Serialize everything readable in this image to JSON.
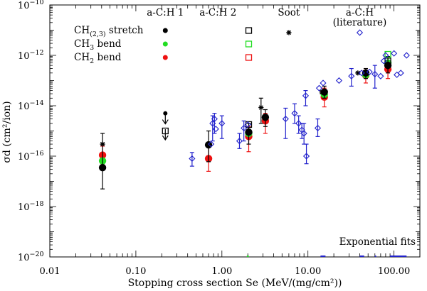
{
  "chart_data": {
    "type": "scatter",
    "xlabel": "Stopping cross section Se (MeV/(mg/cm²))",
    "ylabel": "σd (cm²/ion)",
    "x_scale": "log",
    "y_scale": "log",
    "xlim": [
      0.01,
      200
    ],
    "ylim": [
      1e-20,
      1e-10
    ],
    "x_ticks": [
      {
        "value": 0.01,
        "label": "0.01"
      },
      {
        "value": 0.1,
        "label": "0.10"
      },
      {
        "value": 1,
        "label": "1.00"
      },
      {
        "value": 10,
        "label": "10.00"
      },
      {
        "value": 100,
        "label": "100.00"
      }
    ],
    "y_ticks": [
      {
        "value": 1e-20,
        "mant": "10",
        "exp": "−20"
      },
      {
        "value": 1e-18,
        "mant": "10",
        "exp": "−18"
      },
      {
        "value": 1e-16,
        "mant": "10",
        "exp": "−16"
      },
      {
        "value": 1e-14,
        "mant": "10",
        "exp": "−14"
      },
      {
        "value": 1e-12,
        "mant": "10",
        "exp": "−12"
      },
      {
        "value": 1e-10,
        "mant": "10",
        "exp": "−10"
      }
    ],
    "column_headers": [
      {
        "text": "a-C:H 1",
        "x": 0.22
      },
      {
        "text": "a-C:H 2",
        "x": 0.9
      },
      {
        "text": "Soot",
        "x": 6.0
      },
      {
        "text": "a-C:H",
        "x": 40.0
      },
      {
        "text": "(literature)",
        "x": 40.0
      }
    ],
    "legend_rows": [
      {
        "base": "CH",
        "sub": "(2,3)",
        "rest": " stretch",
        "color": "#000000"
      },
      {
        "base": "CH",
        "sub": "3",
        "rest": " bend",
        "color": "#22dd22"
      },
      {
        "base": "CH",
        "sub": "2",
        "rest": " bend",
        "color": "#ee1111"
      }
    ],
    "note": "Exponential fits",
    "colors": {
      "black": "#000000",
      "green": "#22dd22",
      "red": "#ee1111",
      "blue": "#2222cc"
    },
    "series": [
      {
        "kind": "circle",
        "color": "#ee1111",
        "points": [
          {
            "x": 0.041,
            "y": 1.1e-16,
            "lo": 5e-17,
            "hi": 2.5e-16
          },
          {
            "x": 0.7,
            "y": 8e-17,
            "lo": 2.5e-17,
            "hi": 3e-16
          },
          {
            "x": 2.05,
            "y": 6e-16,
            "lo": 1.5e-16,
            "hi": 1.5e-15
          },
          {
            "x": 3.2,
            "y": 2.5e-15,
            "lo": 8e-16,
            "hi": 5e-15
          },
          {
            "x": 15.5,
            "y": 2.2e-14,
            "lo": 9e-15,
            "hi": 5e-14
          },
          {
            "x": 47,
            "y": 1.6e-13,
            "lo": 8e-14,
            "hi": 3e-13
          },
          {
            "x": 85,
            "y": 2.8e-13,
            "lo": 1.2e-13,
            "hi": 6e-13
          }
        ]
      },
      {
        "kind": "circle",
        "color": "#22dd22",
        "points": [
          {
            "x": 0.041,
            "y": 6.5e-17
          },
          {
            "x": 2.05,
            "y": 8e-16
          },
          {
            "x": 15.5,
            "y": 2.8e-14
          },
          {
            "x": 47,
            "y": 1.7e-13
          },
          {
            "x": 85,
            "y": 5e-13
          }
        ]
      },
      {
        "kind": "circle",
        "color": "#000000",
        "points": [
          {
            "x": 0.041,
            "y": 3.5e-17,
            "lo": 5e-18,
            "hi": 8e-16
          },
          {
            "x": 0.7,
            "y": 2.8e-16,
            "lo": 6e-17,
            "hi": 1e-15
          },
          {
            "x": 2.05,
            "y": 9e-16,
            "lo": 3e-16,
            "hi": 2e-15
          },
          {
            "x": 3.2,
            "y": 3.5e-15,
            "lo": 1.5e-15,
            "hi": 7e-15
          },
          {
            "x": 15.5,
            "y": 3.5e-14,
            "lo": 2e-14,
            "hi": 6e-14
          },
          {
            "x": 47,
            "y": 2e-13,
            "lo": 1.2e-13,
            "hi": 3e-13
          },
          {
            "x": 85,
            "y": 4e-13,
            "lo": 2e-13,
            "hi": 9e-13
          }
        ]
      },
      {
        "kind": "star",
        "color": "#000000",
        "points": [
          {
            "x": 0.041,
            "y": 3e-16
          },
          {
            "x": 2.85,
            "y": 8.5e-15,
            "lo": 2e-15,
            "hi": 2e-14
          },
          {
            "x": 6.0,
            "y": 8e-12
          },
          {
            "x": 14.5,
            "y": 3.5e-14
          },
          {
            "x": 38,
            "y": 2e-13
          }
        ]
      },
      {
        "kind": "square",
        "color": "#000000",
        "points": [
          {
            "x": 0.22,
            "y": 1e-15
          },
          {
            "x": 2.05,
            "y": 1.8e-15
          },
          {
            "x": 85,
            "y": 6e-13
          }
        ]
      },
      {
        "kind": "square",
        "color": "#22dd22",
        "points": [
          {
            "x": 85,
            "y": 1.1e-12
          }
        ]
      },
      {
        "kind": "circle-small",
        "color": "#000000",
        "points": [
          {
            "x": 0.22,
            "y": 5e-15
          }
        ]
      },
      {
        "kind": "arrow-down",
        "color": "#000000",
        "points": [
          {
            "x": 0.22,
            "y": 3e-15
          },
          {
            "x": 0.22,
            "y": 7e-16
          }
        ]
      },
      {
        "kind": "diamond",
        "color": "#2222cc",
        "points": [
          {
            "x": 0.45,
            "y": 8e-17,
            "lo": 4e-17,
            "hi": 1.4e-16
          },
          {
            "x": 0.78,
            "y": 2e-15,
            "lo": 4e-16,
            "hi": 4e-15
          },
          {
            "x": 0.82,
            "y": 3e-15,
            "lo": 8e-16,
            "hi": 5e-15
          },
          {
            "x": 0.75,
            "y": 3e-16
          },
          {
            "x": 0.85,
            "y": 1.2e-15
          },
          {
            "x": 1.0,
            "y": 2e-15,
            "lo": 5e-16,
            "hi": 4e-15
          },
          {
            "x": 1.6,
            "y": 4e-16,
            "lo": 2e-16,
            "hi": 8e-16
          },
          {
            "x": 1.8,
            "y": 1.3e-15,
            "lo": 4e-16,
            "hi": 2.5e-15
          },
          {
            "x": 2.0,
            "y": 1.8e-15
          },
          {
            "x": 5.5,
            "y": 3e-15,
            "lo": 5e-16,
            "hi": 8e-15
          },
          {
            "x": 7.0,
            "y": 5e-15,
            "lo": 2e-15,
            "hi": 1.2e-14
          },
          {
            "x": 7.8,
            "y": 2e-15,
            "lo": 8e-16,
            "hi": 4e-15
          },
          {
            "x": 8.5,
            "y": 1.1e-15,
            "lo": 5e-16,
            "hi": 2e-15
          },
          {
            "x": 9.0,
            "y": 8e-16,
            "lo": 3e-16,
            "hi": 2e-15
          },
          {
            "x": 9.6,
            "y": 1e-16,
            "lo": 5e-17,
            "hi": 3e-16
          },
          {
            "x": 9.4,
            "y": 2.5e-14,
            "lo": 1e-14,
            "hi": 4e-14
          },
          {
            "x": 13.0,
            "y": 1.3e-15,
            "lo": 6e-16,
            "hi": 3e-15
          },
          {
            "x": 13.5,
            "y": 5e-14
          },
          {
            "x": 15.0,
            "y": 8e-14
          },
          {
            "x": 23.0,
            "y": 1e-13
          },
          {
            "x": 32.0,
            "y": 1.5e-13,
            "lo": 6e-14,
            "hi": 3e-13
          },
          {
            "x": 40.0,
            "y": 8e-12
          },
          {
            "x": 42.0,
            "y": 2e-13
          },
          {
            "x": 52.0,
            "y": 2.2e-13
          },
          {
            "x": 60.0,
            "y": 1.8e-13,
            "lo": 5e-14,
            "hi": 4e-13
          },
          {
            "x": 70.0,
            "y": 1.5e-13
          },
          {
            "x": 76.0,
            "y": 6e-13
          },
          {
            "x": 80.0,
            "y": 1e-12
          },
          {
            "x": 100.0,
            "y": 1.2e-12
          },
          {
            "x": 108.0,
            "y": 1.7e-13
          },
          {
            "x": 120.0,
            "y": 2e-13
          },
          {
            "x": 140.0,
            "y": 1e-12
          }
        ]
      }
    ]
  }
}
